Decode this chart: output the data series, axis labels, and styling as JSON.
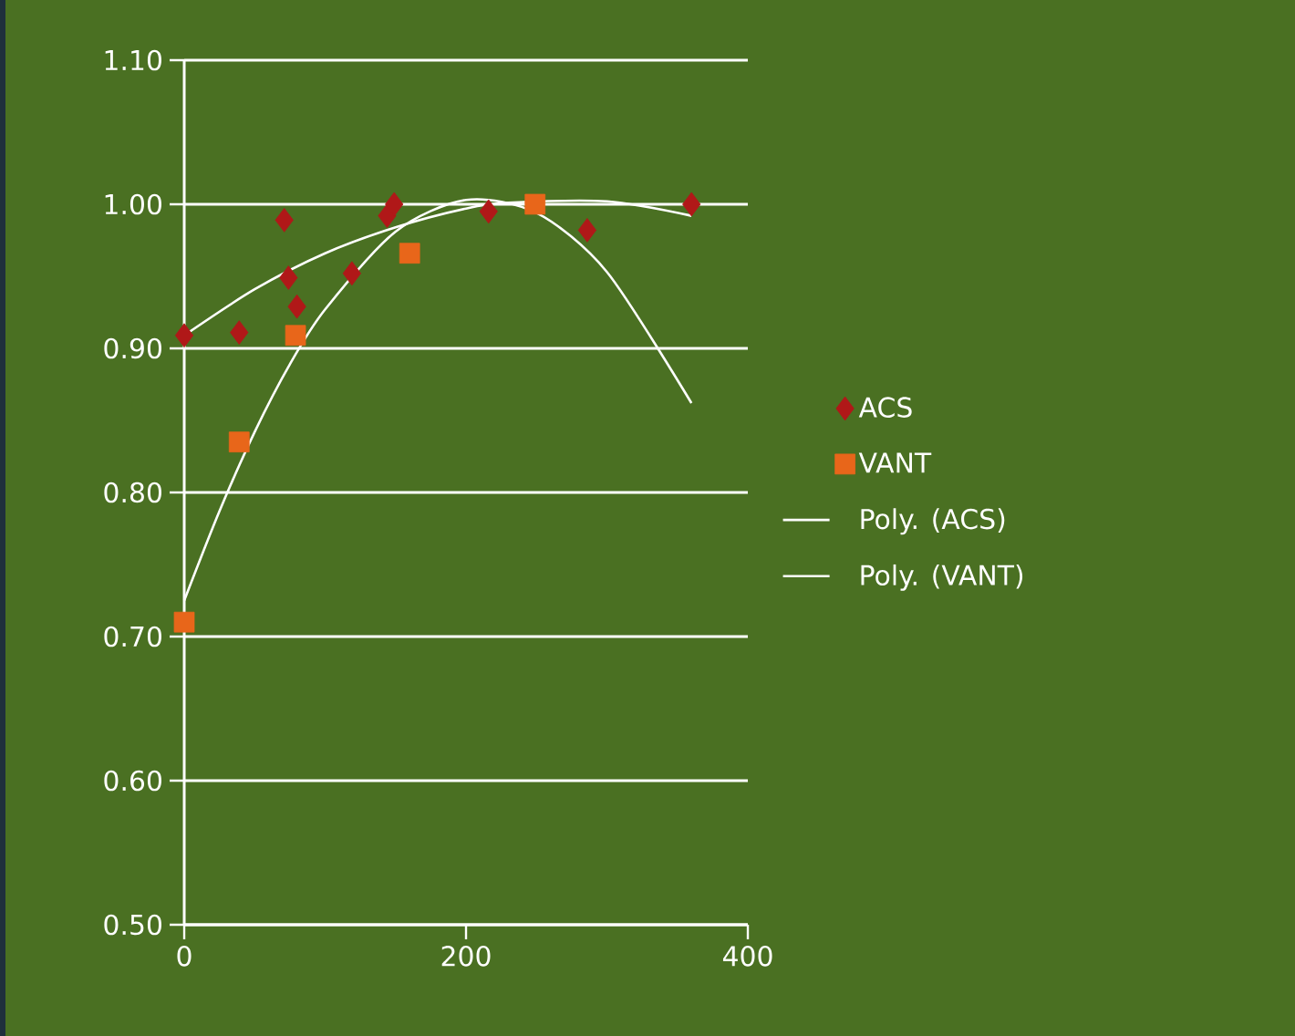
{
  "chart_data": {
    "type": "scatter",
    "xlim": [
      0,
      400
    ],
    "xticks": [
      0,
      200,
      400
    ],
    "ylim": [
      0.5,
      1.1
    ],
    "yticks": [
      {
        "value": 0.5,
        "label": "0.50"
      },
      {
        "value": 0.6,
        "label": "0.60"
      },
      {
        "value": 0.7,
        "label": "0.70"
      },
      {
        "value": 0.8,
        "label": "0.80"
      },
      {
        "value": 0.9,
        "label": "0.90"
      },
      {
        "value": 1.0,
        "label": "1.00"
      },
      {
        "value": 1.1,
        "label": "1.10"
      }
    ],
    "grid": "y",
    "legend": "right",
    "series": [
      {
        "name": "ACS",
        "color": "#b01818",
        "marker": "diamond",
        "x": [
          0,
          39,
          71,
          74,
          80,
          119,
          144,
          149,
          216,
          286,
          360
        ],
        "values": [
          0.909,
          0.911,
          0.989,
          0.949,
          0.929,
          0.952,
          0.992,
          1.0,
          0.995,
          0.982,
          1.0
        ]
      },
      {
        "name": "VANT",
        "color": "#e8661a",
        "marker": "square",
        "x": [
          0,
          39,
          79,
          160,
          249
        ],
        "values": [
          0.71,
          0.835,
          0.909,
          0.966,
          1.0
        ]
      },
      {
        "name": "Poly. (ACS)",
        "type": "line",
        "color": "#ffffff",
        "marker": "none",
        "x": [
          0,
          50,
          100,
          150,
          200,
          230,
          300,
          360
        ],
        "values": [
          0.909,
          0.941,
          0.966,
          0.984,
          0.997,
          1.001,
          1.002,
          0.992
        ]
      },
      {
        "name": "Poly. (VANT)",
        "type": "line",
        "color": "#ffffff",
        "marker": "none",
        "x": [
          0,
          25,
          50,
          75,
          100,
          150,
          200,
          250,
          300,
          360
        ],
        "values": [
          0.725,
          0.787,
          0.842,
          0.889,
          0.927,
          0.981,
          1.003,
          0.994,
          0.953,
          0.862
        ]
      }
    ]
  }
}
